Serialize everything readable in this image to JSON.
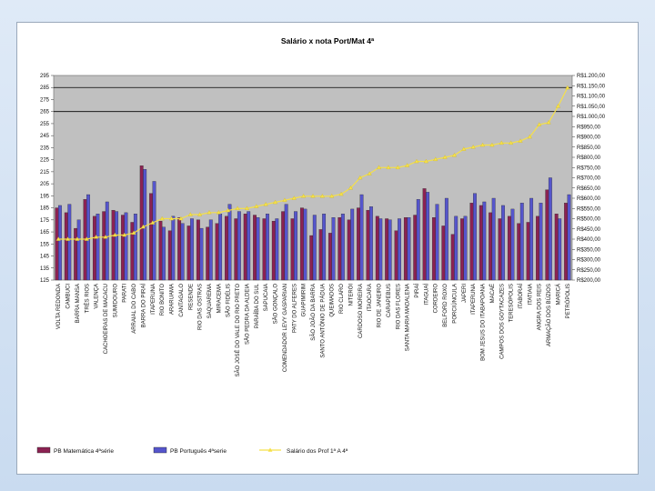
{
  "chart_data": {
    "type": "bar",
    "title": "Salário x nota Port/Mat 4ª",
    "y_left": {
      "min": 125,
      "max": 295,
      "ticks": [
        125,
        135,
        145,
        155,
        165,
        175,
        185,
        195,
        205,
        215,
        225,
        235,
        245,
        255,
        265,
        275,
        285,
        295
      ]
    },
    "y_right": {
      "min": 200,
      "max": 1200,
      "ticks": [
        "R$200,00",
        "R$250,00",
        "R$300,00",
        "R$350,00",
        "R$400,00",
        "R$450,00",
        "R$500,00",
        "R$550,00",
        "R$600,00",
        "R$650,00",
        "R$700,00",
        "R$750,00",
        "R$800,00",
        "R$850,00",
        "R$900,00",
        "R$950,00",
        "R$1.000,00",
        "R$1.050,00",
        "R$1.100,00",
        "R$1.150,00",
        "R$1.200,00"
      ]
    },
    "reference_lines": [
      265,
      285
    ],
    "legend_position": "bottom",
    "categories": [
      "VOLTA REDONDA",
      "CAMBUCI",
      "BARRA MANSA",
      "TRÊS RIOS",
      "VALENÇA",
      "CACHOEIRAS DE MACACU",
      "SUMIDOURO",
      "PARATI",
      "ARRAIAL DO CABO",
      "BARRA DO PIRAÍ",
      "ITAPERUNA",
      "RIO BONITO",
      "ARARUAMA",
      "CANTAGALO",
      "RESENDE",
      "RIO DAS OSTRAS",
      "SAQUAREMA",
      "MIRACEMA",
      "SÃO FIDÉLIS",
      "SÃO JOSÉ DO VALE DO RIO PRETO",
      "SÃO PEDRA DA ALDEIA",
      "PARAÍBA DO SUL",
      "SAPUCAIA",
      "SÃO GONÇALO",
      "COMENDADOR LEVY GASPARIAN",
      "PATY DO ALFERES",
      "GUAPIMIRIM",
      "SÃO JOÃO DA BARRA",
      "SANTO ANTÔNIO DE PÁDUA",
      "QUEIMADOS",
      "RIO CLARO",
      "NITERÓI",
      "CARDOSO MOREIRA",
      "ITAOCARA",
      "RIO DE JANEIRO",
      "CARAPEBUS",
      "RIO DAS FLORES",
      "SANTA MARIA MADALENA",
      "PIRAÍ",
      "ITAGUAÍ",
      "CORDEIRO",
      "BELFORD ROXO",
      "PORCIÚNCULA",
      "JAPERI",
      "ITAPERUNA",
      "BOM JESUS DO ITABAPOANA",
      "MACAÉ",
      "CAMPOS DOS GOYTACAZES",
      "TERESÓPOLIS",
      "ITABORAÍ",
      "ITATIAIA",
      "ANGRA DOS REIS",
      "ARMAÇÃO DOS BÚZIOS",
      "MARICÁ",
      "PETRÓPOLIS"
    ],
    "series": [
      {
        "name": "PB Matemática 4ªsérie",
        "color": "#8b2252",
        "values": [
          185,
          181,
          168,
          192,
          178,
          182,
          183,
          179,
          173,
          220,
          197,
          174,
          166,
          177,
          170,
          175,
          169,
          172,
          178,
          176,
          180,
          179,
          176,
          174,
          182,
          176,
          185,
          162,
          167,
          164,
          177,
          175,
          185,
          183,
          178,
          176,
          166,
          177,
          179,
          201,
          177,
          170,
          163,
          176,
          189,
          187,
          181,
          176,
          178,
          172,
          173,
          178,
          200,
          180,
          189
        ]
      },
      {
        "name": "PB Português 4ªserie",
        "color": "#5555cc",
        "values": [
          187,
          188,
          175,
          196,
          180,
          190,
          182,
          181,
          180,
          217,
          207,
          169,
          178,
          172,
          176,
          168,
          175,
          180,
          188,
          182,
          182,
          177,
          180,
          176,
          188,
          182,
          184,
          179,
          180,
          177,
          180,
          184,
          196,
          186,
          176,
          175,
          176,
          177,
          192,
          198,
          188,
          193,
          178,
          178,
          197,
          190,
          193,
          187,
          184,
          189,
          193,
          189,
          210,
          176,
          196
        ]
      },
      {
        "name": "Salário dos Prof 1ª A 4ª",
        "color": "#f5e04a",
        "axis": "right",
        "values": [
          400,
          400,
          400,
          400,
          410,
          410,
          420,
          420,
          430,
          460,
          480,
          500,
          500,
          500,
          520,
          520,
          530,
          530,
          540,
          550,
          550,
          560,
          570,
          580,
          590,
          600,
          610,
          610,
          610,
          610,
          620,
          650,
          700,
          720,
          750,
          750,
          750,
          760,
          780,
          780,
          790,
          800,
          810,
          840,
          850,
          860,
          860,
          870,
          870,
          880,
          900,
          960,
          970,
          1050,
          1140
        ]
      }
    ]
  }
}
